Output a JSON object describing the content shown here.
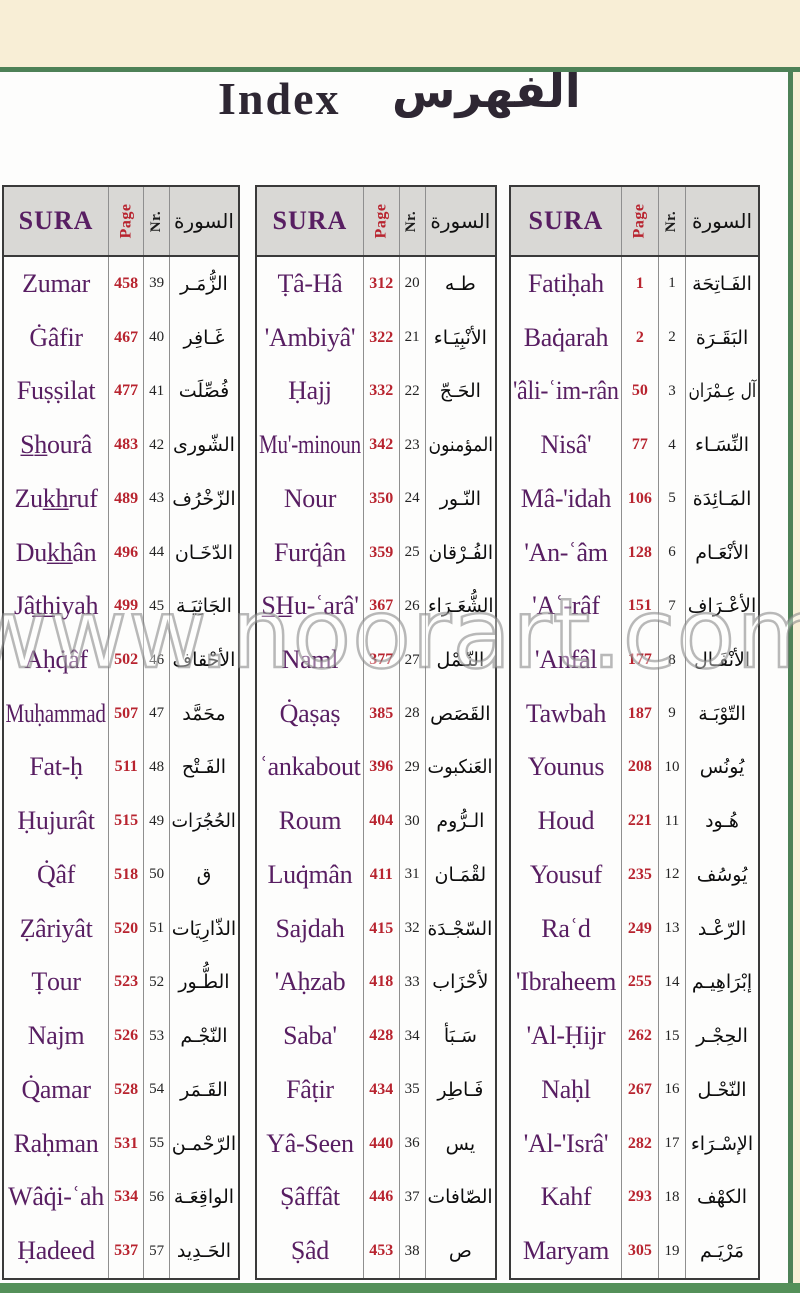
{
  "title": {
    "english": "Index",
    "arabic": "الفهرس"
  },
  "watermark": "www.noorart.com",
  "header": {
    "sura": "SURA",
    "page": "Page",
    "nr": "Nr.",
    "arabic": "السورة"
  },
  "colors": {
    "sura_name_purple": "#581e62",
    "page_number_red": "#b8242f",
    "frame_green": "#4e8157",
    "background_cream": "#f8eed6",
    "header_gray": "#d9d8d5"
  },
  "tables": [
    {
      "id": "suras-39-57",
      "rows": [
        {
          "name": "Zumar",
          "page": "458",
          "nr": "39",
          "arabic": "الزُّمَـر"
        },
        {
          "name": "Ġâfir",
          "page": "467",
          "nr": "40",
          "arabic": "غَـافِر"
        },
        {
          "name": "Fuṣṣilat",
          "page": "477",
          "nr": "41",
          "arabic": "فُصِّلَت"
        },
        {
          "name": "S̲h̲ourâ",
          "page": "483",
          "nr": "42",
          "arabic": "الشّورى"
        },
        {
          "name": "Zuk̲h̲ruf",
          "page": "489",
          "nr": "43",
          "arabic": "الزّخْرُف"
        },
        {
          "name": "Duk̲h̲ân",
          "page": "496",
          "nr": "44",
          "arabic": "الدّخَـان"
        },
        {
          "name": "Jât̲h̲iyah",
          "page": "499",
          "nr": "45",
          "arabic": "الجَاثِيَـة"
        },
        {
          "name": "Aḥq̇âf",
          "page": "502",
          "nr": "46",
          "arabic": "الأحْقاف"
        },
        {
          "name": "Muḥammad",
          "page": "507",
          "nr": "47",
          "arabic": "محَمَّد"
        },
        {
          "name": "Fat-ḥ",
          "page": "511",
          "nr": "48",
          "arabic": "الفَـتْح"
        },
        {
          "name": "Ḥujurât",
          "page": "515",
          "nr": "49",
          "arabic": "الحُجُرَات"
        },
        {
          "name": "Q̇âf",
          "page": "518",
          "nr": "50",
          "arabic": "ق"
        },
        {
          "name": "Ẓâriyât",
          "page": "520",
          "nr": "51",
          "arabic": "الذّارِيَات"
        },
        {
          "name": "Ṭour",
          "page": "523",
          "nr": "52",
          "arabic": "الطُّـور"
        },
        {
          "name": "Najm",
          "page": "526",
          "nr": "53",
          "arabic": "النّجْـم"
        },
        {
          "name": "Q̇amar",
          "page": "528",
          "nr": "54",
          "arabic": "القَـمَر"
        },
        {
          "name": "Raḥman",
          "page": "531",
          "nr": "55",
          "arabic": "الرّحْمـن"
        },
        {
          "name": "Wâq̇i-ʿah",
          "page": "534",
          "nr": "56",
          "arabic": "الواقِعَـة"
        },
        {
          "name": "Ḥadeed",
          "page": "537",
          "nr": "57",
          "arabic": "الحَـدِيد"
        }
      ]
    },
    {
      "id": "suras-20-38",
      "rows": [
        {
          "name": "Ṭâ-Hâ",
          "page": "312",
          "nr": "20",
          "arabic": "طـه"
        },
        {
          "name": "'Ambiyâ'",
          "page": "322",
          "nr": "21",
          "arabic": "الأنْبِيَـاء"
        },
        {
          "name": "Ḥajj",
          "page": "332",
          "nr": "22",
          "arabic": "الحَـجّ"
        },
        {
          "name": "Mu'-minoun",
          "page": "342",
          "nr": "23",
          "arabic": "المؤمنون"
        },
        {
          "name": "Nour",
          "page": "350",
          "nr": "24",
          "arabic": "النّـور"
        },
        {
          "name": "Furq̇ân",
          "page": "359",
          "nr": "25",
          "arabic": "الفُـرْقان"
        },
        {
          "name": "S̲H̲u-ʿarâ'",
          "page": "367",
          "nr": "26",
          "arabic": "الشُّعَـرَاء"
        },
        {
          "name": "Naml",
          "page": "377",
          "nr": "27",
          "arabic": "النّـمْل"
        },
        {
          "name": "Q̇aṣaṣ",
          "page": "385",
          "nr": "28",
          "arabic": "القَصَص"
        },
        {
          "name": "ʿankabout",
          "page": "396",
          "nr": "29",
          "arabic": "العَنكبوت"
        },
        {
          "name": "Roum",
          "page": "404",
          "nr": "30",
          "arabic": "الـرُّوم"
        },
        {
          "name": "Luq̇mân",
          "page": "411",
          "nr": "31",
          "arabic": "لقْمَـان"
        },
        {
          "name": "Sajdah",
          "page": "415",
          "nr": "32",
          "arabic": "السّجْـدَة"
        },
        {
          "name": "'Aḥzab",
          "page": "418",
          "nr": "33",
          "arabic": "لأحْزَاب"
        },
        {
          "name": "Saba'",
          "page": "428",
          "nr": "34",
          "arabic": "سَـبَأ"
        },
        {
          "name": "Fâṭir",
          "page": "434",
          "nr": "35",
          "arabic": "فَـاطِر"
        },
        {
          "name": "Yâ-Seen",
          "page": "440",
          "nr": "36",
          "arabic": "يس"
        },
        {
          "name": "Ṣâffât",
          "page": "446",
          "nr": "37",
          "arabic": "الصّافات"
        },
        {
          "name": "Ṣâd",
          "page": "453",
          "nr": "38",
          "arabic": "ص"
        }
      ]
    },
    {
      "id": "suras-1-19",
      "rows": [
        {
          "name": "Fatiḥah",
          "page": "1",
          "nr": "1",
          "arabic": "الفَـاتِحَة"
        },
        {
          "name": "Baq̇arah",
          "page": "2",
          "nr": "2",
          "arabic": "البَقَـرَة"
        },
        {
          "name": "'âli-ʿim-rân",
          "page": "50",
          "nr": "3",
          "arabic": "آل عِـمْرَان"
        },
        {
          "name": "Nisâ'",
          "page": "77",
          "nr": "4",
          "arabic": "النِّسَـاء"
        },
        {
          "name": "Mâ-'idah",
          "page": "106",
          "nr": "5",
          "arabic": "المَـائِدَة"
        },
        {
          "name": "'An-ʿâm",
          "page": "128",
          "nr": "6",
          "arabic": "الأنْعَـام"
        },
        {
          "name": "'Aʿ-râf",
          "page": "151",
          "nr": "7",
          "arabic": "الأعْـرَاف"
        },
        {
          "name": "'Anfâl",
          "page": "177",
          "nr": "8",
          "arabic": "الأنْفَـال"
        },
        {
          "name": "Tawbah",
          "page": "187",
          "nr": "9",
          "arabic": "التّوْبَـة"
        },
        {
          "name": "Younus",
          "page": "208",
          "nr": "10",
          "arabic": "يُونُس"
        },
        {
          "name": "Houd",
          "page": "221",
          "nr": "11",
          "arabic": "هُـود"
        },
        {
          "name": "Yousuf",
          "page": "235",
          "nr": "12",
          "arabic": "يُوسُف"
        },
        {
          "name": "Raʿd",
          "page": "249",
          "nr": "13",
          "arabic": "الرّعْـد"
        },
        {
          "name": "'Ibraheem",
          "page": "255",
          "nr": "14",
          "arabic": "إبْرَاهِيـم"
        },
        {
          "name": "'Al-Ḥijr",
          "page": "262",
          "nr": "15",
          "arabic": "الحِجْـر"
        },
        {
          "name": "Naḥl",
          "page": "267",
          "nr": "16",
          "arabic": "النّحْـل"
        },
        {
          "name": "'Al-'Isrâ'",
          "page": "282",
          "nr": "17",
          "arabic": "الإسْـرَاء"
        },
        {
          "name": "Kahf",
          "page": "293",
          "nr": "18",
          "arabic": "الكهْف"
        },
        {
          "name": "Maryam",
          "page": "305",
          "nr": "19",
          "arabic": "مَرْيَـم"
        }
      ]
    }
  ]
}
